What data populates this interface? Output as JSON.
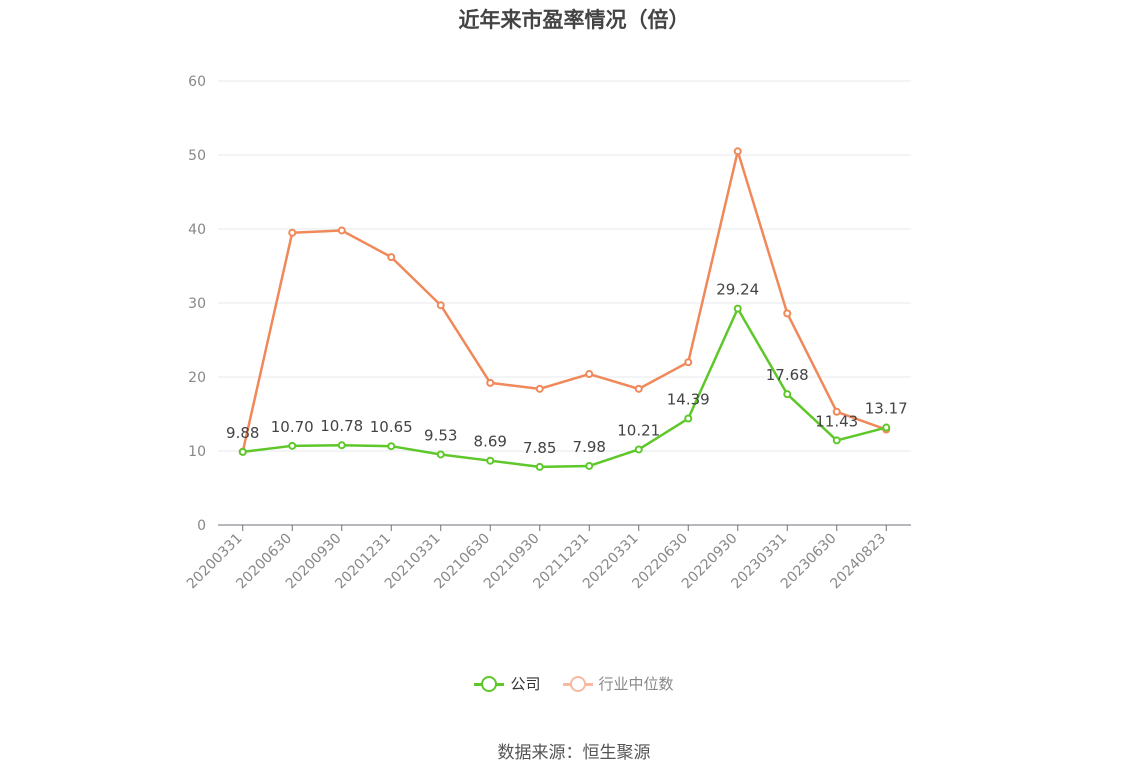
{
  "chart_data": {
    "type": "line",
    "title": "近年来市盈率情况（倍）",
    "categories": [
      "20200331",
      "20200630",
      "20200930",
      "20201231",
      "20210331",
      "20210630",
      "20210930",
      "20211231",
      "20220331",
      "20220630",
      "20220930",
      "20230331",
      "20230630",
      "20240823"
    ],
    "series": [
      {
        "name": "公司",
        "color": "#5ec72a",
        "values": [
          9.88,
          10.7,
          10.78,
          10.65,
          9.53,
          8.69,
          7.85,
          7.98,
          10.21,
          14.39,
          29.24,
          17.68,
          11.43,
          13.17
        ],
        "labels_shown": true
      },
      {
        "name": "行业中位数",
        "color": "#f0885a",
        "legend_color": "#f8b9a0",
        "values": [
          9.9,
          39.5,
          39.8,
          36.2,
          29.7,
          19.2,
          18.4,
          20.4,
          18.4,
          22.0,
          50.5,
          28.6,
          15.3,
          12.9
        ],
        "labels_shown": false
      }
    ],
    "y_ticks": [
      "0",
      "10",
      "20",
      "30",
      "40",
      "50",
      "60"
    ],
    "ylim": [
      0,
      60
    ],
    "grid": true,
    "legend_position": "bottom"
  },
  "source": "数据来源：恒生聚源"
}
